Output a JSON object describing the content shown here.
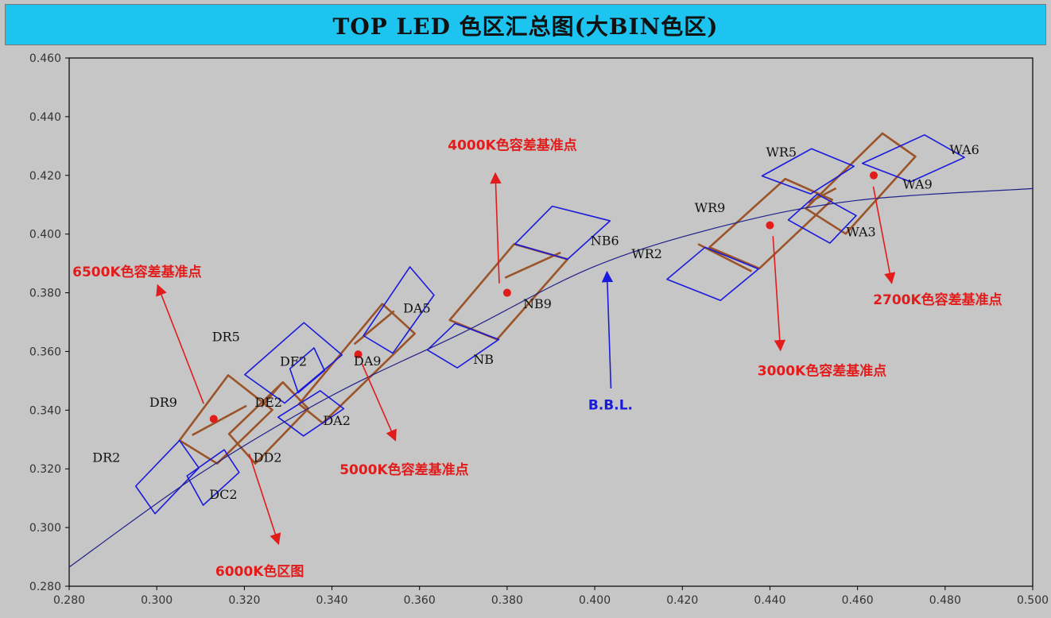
{
  "title": "TOP LED 色区汇总图(大BIN色区)",
  "colors": {
    "background": "#c6c6c6",
    "title_bar": "#1ec4f0",
    "bin_outline": "#1a1adc",
    "group_outline": "#9b5328",
    "curve": "#20208a",
    "annotation": "#e21b1b",
    "bbl_arrow": "#1a1adc",
    "axis_text": "#333333"
  },
  "chart_data": {
    "type": "scatter",
    "title": "TOP LED 色区汇总图(大BIN色区)",
    "xlim": [
      0.28,
      0.5
    ],
    "ylim": [
      0.28,
      0.46
    ],
    "xticks": [
      "0.280",
      "0.300",
      "0.320",
      "0.340",
      "0.360",
      "0.380",
      "0.400",
      "0.420",
      "0.440",
      "0.460",
      "0.480",
      "0.500"
    ],
    "yticks": [
      "0.460",
      "0.440",
      "0.420",
      "0.400",
      "0.380",
      "0.360",
      "0.340",
      "0.320",
      "0.300",
      "0.280"
    ],
    "grid": false,
    "bins": [
      {
        "label": "DR5",
        "corners": [
          [
            0.3201,
            0.3521
          ],
          [
            0.3336,
            0.3698
          ],
          [
            0.3423,
            0.3588
          ],
          [
            0.3292,
            0.3424
          ]
        ]
      },
      {
        "label": "DR2",
        "corners": [
          [
            0.2952,
            0.3141
          ],
          [
            0.2996,
            0.3047
          ],
          [
            0.3096,
            0.3203
          ],
          [
            0.3052,
            0.3297
          ]
        ]
      },
      {
        "label": "DF2",
        "corners": [
          [
            0.3304,
            0.3541
          ],
          [
            0.3359,
            0.3612
          ],
          [
            0.3383,
            0.3535
          ],
          [
            0.3323,
            0.3459
          ]
        ]
      },
      {
        "label": "DA2",
        "corners": [
          [
            0.3277,
            0.3376
          ],
          [
            0.3335,
            0.3312
          ],
          [
            0.3427,
            0.3405
          ],
          [
            0.3373,
            0.3466
          ]
        ]
      },
      {
        "label": "DC2",
        "corners": [
          [
            0.3069,
            0.3176
          ],
          [
            0.3154,
            0.3265
          ],
          [
            0.3188,
            0.3188
          ],
          [
            0.3106,
            0.3076
          ]
        ]
      },
      {
        "label": "DA5",
        "corners": [
          [
            0.3472,
            0.3654
          ],
          [
            0.3578,
            0.3888
          ],
          [
            0.3633,
            0.3792
          ],
          [
            0.3539,
            0.3594
          ]
        ]
      },
      {
        "label": "NB",
        "corners": [
          [
            0.3618,
            0.3605
          ],
          [
            0.3686,
            0.3544
          ],
          [
            0.3781,
            0.3641
          ],
          [
            0.3681,
            0.3695
          ]
        ]
      },
      {
        "label": "NB6",
        "corners": [
          [
            0.3818,
            0.3966
          ],
          [
            0.3903,
            0.4095
          ],
          [
            0.4035,
            0.4045
          ],
          [
            0.3938,
            0.3914
          ]
        ]
      },
      {
        "label": "WR5",
        "corners": [
          [
            0.4382,
            0.4198
          ],
          [
            0.4495,
            0.4291
          ],
          [
            0.4592,
            0.4231
          ],
          [
            0.4493,
            0.4137
          ]
        ]
      },
      {
        "label": "WR2",
        "corners": [
          [
            0.4165,
            0.3846
          ],
          [
            0.4252,
            0.3955
          ],
          [
            0.4374,
            0.3881
          ],
          [
            0.4287,
            0.3774
          ]
        ]
      },
      {
        "label": "WA3",
        "corners": [
          [
            0.4442,
            0.4048
          ],
          [
            0.4537,
            0.3969
          ],
          [
            0.4597,
            0.4063
          ],
          [
            0.4508,
            0.4136
          ]
        ]
      },
      {
        "label": "WA6",
        "corners": [
          [
            0.4611,
            0.4241
          ],
          [
            0.4753,
            0.4338
          ],
          [
            0.4844,
            0.4261
          ],
          [
            0.4721,
            0.4178
          ]
        ]
      }
    ],
    "groups": [
      {
        "name": "6500K",
        "corners": [
          [
            0.3052,
            0.3297
          ],
          [
            0.3163,
            0.3519
          ],
          [
            0.3264,
            0.3401
          ],
          [
            0.3138,
            0.3218
          ]
        ]
      },
      {
        "name": "6000K",
        "corners": [
          [
            0.3165,
            0.3319
          ],
          [
            0.3288,
            0.3495
          ],
          [
            0.3346,
            0.3405
          ],
          [
            0.3225,
            0.3218
          ]
        ]
      },
      {
        "name": "5000K",
        "corners": [
          [
            0.3325,
            0.3421
          ],
          [
            0.3515,
            0.3762
          ],
          [
            0.3589,
            0.3661
          ],
          [
            0.3379,
            0.3356
          ]
        ]
      },
      {
        "name": "4000K",
        "corners": [
          [
            0.3669,
            0.3707
          ],
          [
            0.3816,
            0.3966
          ],
          [
            0.3938,
            0.3914
          ],
          [
            0.3777,
            0.3641
          ]
        ]
      },
      {
        "name": "3000K",
        "corners": [
          [
            0.4262,
            0.3955
          ],
          [
            0.4435,
            0.4188
          ],
          [
            0.4542,
            0.4117
          ],
          [
            0.4376,
            0.3883
          ]
        ]
      },
      {
        "name": "2700K",
        "corners": [
          [
            0.4482,
            0.4087
          ],
          [
            0.4657,
            0.4343
          ],
          [
            0.4732,
            0.4264
          ],
          [
            0.4573,
            0.4001
          ]
        ]
      }
    ],
    "group_dividers": [
      [
        [
          0.3081,
          0.3315
        ],
        [
          0.3205,
          0.3415
        ]
      ],
      [
        [
          0.3239,
          0.3411
        ],
        [
          0.3285,
          0.3491
        ]
      ],
      [
        [
          0.3451,
          0.3625
        ],
        [
          0.3542,
          0.3738
        ]
      ],
      [
        [
          0.3795,
          0.3851
        ],
        [
          0.3922,
          0.3937
        ]
      ],
      [
        [
          0.4236,
          0.3966
        ],
        [
          0.4358,
          0.3873
        ]
      ],
      [
        [
          0.4488,
          0.4107
        ],
        [
          0.4551,
          0.4156
        ]
      ]
    ],
    "bbl_curve": {
      "label": "B.B.L.",
      "points": [
        [
          0.28,
          0.2865
        ],
        [
          0.31,
          0.3185
        ],
        [
          0.34,
          0.345
        ],
        [
          0.37,
          0.3665
        ],
        [
          0.4,
          0.389
        ],
        [
          0.43,
          0.403
        ],
        [
          0.46,
          0.4115
        ],
        [
          0.5,
          0.4155
        ]
      ]
    },
    "reference_points": [
      {
        "label": "6500K色容差基准点",
        "x": 0.313,
        "y": 0.337
      },
      {
        "label": "5000K色容差基准点",
        "x": 0.346,
        "y": 0.359
      },
      {
        "label": "4000K色容差基准点",
        "x": 0.38,
        "y": 0.38
      },
      {
        "label": "3000K色容差基准点",
        "x": 0.44,
        "y": 0.403
      },
      {
        "label": "2700K色容差基准点",
        "x": 0.4637,
        "y": 0.42
      }
    ],
    "bin_labels": [
      {
        "text": "DR5",
        "x": 0.3158,
        "y": 0.3635
      },
      {
        "text": "DR9",
        "x": 0.3015,
        "y": 0.3412
      },
      {
        "text": "DR2",
        "x": 0.2885,
        "y": 0.3223
      },
      {
        "text": "DF2",
        "x": 0.3312,
        "y": 0.3551
      },
      {
        "text": "DE2",
        "x": 0.3255,
        "y": 0.3412
      },
      {
        "text": "DD2",
        "x": 0.3253,
        "y": 0.3223
      },
      {
        "text": "DC2",
        "x": 0.3152,
        "y": 0.3098
      },
      {
        "text": "DA2",
        "x": 0.3411,
        "y": 0.3349
      },
      {
        "text": "DA9",
        "x": 0.3481,
        "y": 0.3552
      },
      {
        "text": "DA5",
        "x": 0.3594,
        "y": 0.3732
      },
      {
        "text": "NB9",
        "x": 0.3869,
        "y": 0.3747
      },
      {
        "text": "NB",
        "x": 0.3746,
        "y": 0.3558
      },
      {
        "text": "NB6",
        "x": 0.4023,
        "y": 0.3963
      },
      {
        "text": "WR2",
        "x": 0.4119,
        "y": 0.3918
      },
      {
        "text": "WR9",
        "x": 0.4263,
        "y": 0.4075
      },
      {
        "text": "WR5",
        "x": 0.4426,
        "y": 0.4265
      },
      {
        "text": "WA3",
        "x": 0.4608,
        "y": 0.3993
      },
      {
        "text": "WA9",
        "x": 0.4737,
        "y": 0.4155
      },
      {
        "text": "WA6",
        "x": 0.4844,
        "y": 0.4272
      }
    ],
    "annotations": [
      {
        "text": "6500K色容差基准点",
        "text_x": 0.2955,
        "text_y": 0.3856,
        "arrow_from": [
          0.3107,
          0.3422
        ],
        "arrow_to": [
          0.3002,
          0.3826
        ]
      },
      {
        "text": "6000K色区图",
        "text_x": 0.3235,
        "text_y": 0.2835,
        "arrow_from": [
          0.3211,
          0.3251
        ],
        "arrow_to": [
          0.3278,
          0.2944
        ]
      },
      {
        "text": "5000K色容差基准点",
        "text_x": 0.3565,
        "text_y": 0.3182,
        "arrow_from": [
          0.3469,
          0.3557
        ],
        "arrow_to": [
          0.3545,
          0.3297
        ]
      },
      {
        "text": "4000K色容差基准点",
        "text_x": 0.3812,
        "text_y": 0.4288,
        "arrow_from": [
          0.3782,
          0.3832
        ],
        "arrow_to": [
          0.3773,
          0.4207
        ]
      },
      {
        "text": "3000K色容差基准点",
        "text_x": 0.4519,
        "text_y": 0.3518,
        "arrow_from": [
          0.4407,
          0.3993
        ],
        "arrow_to": [
          0.4424,
          0.3604
        ]
      },
      {
        "text": "2700K色容差基准点",
        "text_x": 0.4783,
        "text_y": 0.3761,
        "arrow_from": [
          0.4636,
          0.4162
        ],
        "arrow_to": [
          0.4678,
          0.3833
        ]
      },
      {
        "text": "B.B.L.",
        "text_x": 0.4036,
        "text_y": 0.3402,
        "arrow_from": [
          0.4037,
          0.3474
        ],
        "arrow_to": [
          0.4028,
          0.3871
        ],
        "color": "blue"
      }
    ]
  }
}
